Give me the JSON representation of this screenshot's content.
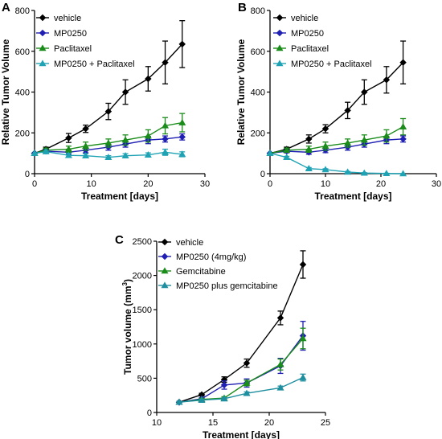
{
  "chart_data": [
    {
      "panel": "A",
      "type": "line",
      "xlabel": "Treatment [days]",
      "ylabel": "Relative Tumor Volume",
      "xlim": [
        0,
        30
      ],
      "ylim": [
        0,
        800
      ],
      "xticks": [
        0,
        10,
        20,
        30
      ],
      "yticks": [
        0,
        200,
        400,
        600,
        800
      ],
      "grid": false,
      "legend_position": "top-left",
      "series": [
        {
          "name": "vehicle",
          "color": "#000000",
          "marker": "diamond",
          "x": [
            0,
            2,
            6,
            9,
            13,
            16,
            20,
            23,
            26
          ],
          "y": [
            100,
            120,
            175,
            220,
            305,
            400,
            465,
            545,
            635
          ],
          "err": [
            0,
            10,
            22,
            18,
            40,
            60,
            60,
            105,
            115
          ]
        },
        {
          "name": "MP0250",
          "color": "#1f1fb4",
          "marker": "diamond",
          "x": [
            0,
            2,
            6,
            9,
            13,
            16,
            20,
            23,
            26
          ],
          "y": [
            100,
            110,
            105,
            115,
            130,
            145,
            165,
            170,
            180
          ],
          "err": [
            0,
            8,
            10,
            12,
            15,
            15,
            18,
            15,
            15
          ]
        },
        {
          "name": "Paclitaxel",
          "color": "#1a8c1a",
          "marker": "triangle-up",
          "x": [
            0,
            2,
            6,
            9,
            13,
            16,
            20,
            23,
            26
          ],
          "y": [
            100,
            115,
            120,
            135,
            150,
            165,
            185,
            235,
            250
          ],
          "err": [
            0,
            10,
            15,
            20,
            20,
            25,
            30,
            40,
            45
          ]
        },
        {
          "name": "MP0250 + Paclitaxel",
          "color": "#1fa3b4",
          "marker": "triangle-up",
          "x": [
            0,
            2,
            6,
            9,
            13,
            16,
            20,
            23,
            26
          ],
          "y": [
            100,
            108,
            90,
            88,
            80,
            88,
            92,
            105,
            95
          ],
          "err": [
            0,
            8,
            10,
            10,
            8,
            10,
            10,
            15,
            12
          ]
        }
      ]
    },
    {
      "panel": "B",
      "type": "line",
      "xlabel": "Treatment [days]",
      "ylabel": "Relative Tumor Volume",
      "xlim": [
        0,
        30
      ],
      "ylim": [
        0,
        800
      ],
      "xticks": [
        0,
        10,
        20,
        30
      ],
      "yticks": [
        0,
        200,
        400,
        600,
        800
      ],
      "grid": false,
      "legend_position": "top-left",
      "series": [
        {
          "name": "vehicle",
          "color": "#000000",
          "marker": "diamond",
          "x": [
            0,
            3,
            7,
            10,
            14,
            17,
            21,
            24
          ],
          "y": [
            100,
            120,
            170,
            220,
            310,
            400,
            460,
            545
          ],
          "err": [
            0,
            10,
            20,
            20,
            40,
            60,
            65,
            105
          ]
        },
        {
          "name": "MP0250",
          "color": "#1f1fb4",
          "marker": "diamond",
          "x": [
            0,
            3,
            7,
            10,
            14,
            17,
            21,
            24
          ],
          "y": [
            100,
            110,
            105,
            115,
            130,
            145,
            165,
            170
          ],
          "err": [
            0,
            8,
            10,
            12,
            15,
            15,
            18,
            15
          ]
        },
        {
          "name": "Paclitaxel",
          "color": "#1a8c1a",
          "marker": "triangle-up",
          "x": [
            0,
            3,
            7,
            10,
            14,
            17,
            21,
            24
          ],
          "y": [
            100,
            115,
            120,
            135,
            150,
            165,
            185,
            230
          ],
          "err": [
            0,
            10,
            15,
            20,
            20,
            25,
            30,
            40
          ]
        },
        {
          "name": "MP0250 + Paclitaxel",
          "color": "#1fa3b4",
          "marker": "triangle-up",
          "x": [
            0,
            3,
            7,
            10,
            14,
            17,
            21,
            24
          ],
          "y": [
            100,
            80,
            25,
            20,
            8,
            3,
            1,
            0
          ],
          "err": [
            0,
            5,
            5,
            4,
            3,
            2,
            1,
            0
          ]
        }
      ]
    },
    {
      "panel": "C",
      "type": "line",
      "xlabel": "Treatment [days]",
      "ylabel": "Tumor volume (mm",
      "ylabel_superscript": "3",
      "ylabel_close": ")",
      "xlim": [
        10,
        25
      ],
      "ylim": [
        0,
        2500
      ],
      "xticks": [
        10,
        15,
        20,
        25
      ],
      "yticks": [
        0,
        500,
        1000,
        1500,
        2000,
        2500
      ],
      "grid": false,
      "legend_position": "top-left",
      "series": [
        {
          "name": "vehicle",
          "color": "#000000",
          "marker": "diamond",
          "x": [
            12,
            14,
            16,
            18,
            21,
            23
          ],
          "y": [
            150,
            260,
            480,
            720,
            1380,
            2160
          ],
          "err": [
            10,
            20,
            40,
            60,
            100,
            200
          ]
        },
        {
          "name": "MP0250 (4mg/kg)",
          "color": "#1f1fb4",
          "marker": "diamond",
          "x": [
            12,
            14,
            16,
            18,
            21,
            23
          ],
          "y": [
            150,
            200,
            400,
            430,
            680,
            1120
          ],
          "err": [
            10,
            15,
            60,
            60,
            110,
            210
          ]
        },
        {
          "name": "Gemcitabine",
          "color": "#1a8c1a",
          "marker": "triangle-up",
          "x": [
            12,
            14,
            16,
            18,
            21,
            23
          ],
          "y": [
            150,
            190,
            210,
            430,
            700,
            1080
          ],
          "err": [
            10,
            15,
            20,
            40,
            80,
            150
          ]
        },
        {
          "name": "MP0250 plus gemcitabine",
          "color": "#1f8fa0",
          "marker": "triangle-up",
          "x": [
            12,
            14,
            16,
            18,
            21,
            23
          ],
          "y": [
            150,
            180,
            200,
            280,
            360,
            510
          ],
          "err": [
            10,
            12,
            15,
            20,
            25,
            50
          ]
        }
      ]
    }
  ]
}
